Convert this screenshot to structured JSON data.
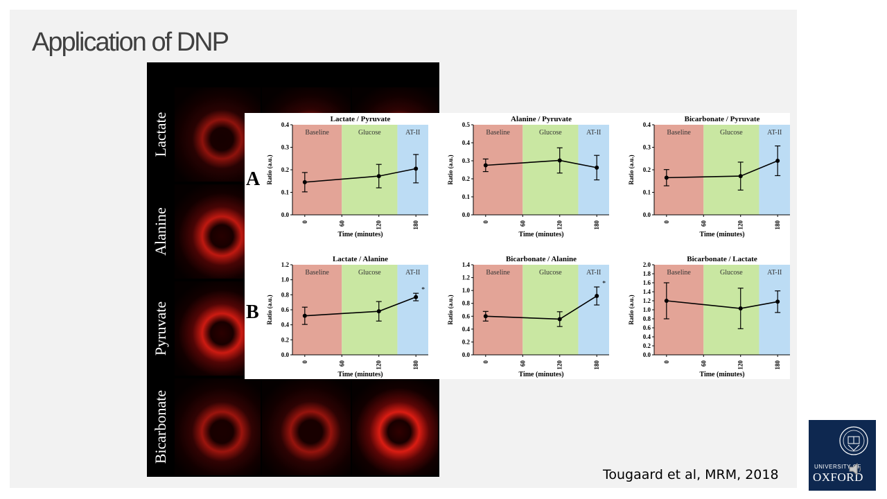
{
  "slide": {
    "title": "Application of DNP",
    "citation": "Tougaard et al, MRM, 2018",
    "logo_text_small": "UNIVERSITY OF",
    "logo_text_large": "OXFORD",
    "logo_icon": "oxford-crest-icon",
    "audio_icon": "speaker-icon"
  },
  "mri_panel": {
    "columns": [
      {
        "label": "Baseline",
        "color": "#f0a090"
      },
      {
        "label": "Glucose",
        "color": "#c8e6a0"
      },
      {
        "label": "AT-II",
        "color": "#bcdcf4"
      }
    ],
    "rows": [
      "Lactate",
      "Alanine",
      "Pyruvate",
      "Bicarbonate"
    ]
  },
  "panel_labels": [
    "A",
    "B"
  ],
  "phase_colors": {
    "Baseline": "#e3a497",
    "Glucose": "#c9e7a2",
    "AT-II": "#bcdcf4"
  },
  "chart_data": [
    {
      "type": "line",
      "title": "Lactate / Pyruvate",
      "xlabel": "Time (minutes)",
      "ylabel": "Ratio (a.u.)",
      "xticks": [
        0,
        60,
        120,
        180
      ],
      "xlim": [
        -20,
        200
      ],
      "ylim": [
        0,
        0.4
      ],
      "yticks": [
        "0.0",
        "0.1",
        "0.2",
        "0.3",
        "0.4"
      ],
      "ytick_values": [
        0,
        0.1,
        0.2,
        0.3,
        0.4
      ],
      "phases": [
        {
          "label": "Baseline",
          "from": -20,
          "to": 60
        },
        {
          "label": "Glucose",
          "from": 60,
          "to": 150
        },
        {
          "label": "AT-II",
          "from": 150,
          "to": 200
        }
      ],
      "x": [
        0,
        120,
        180
      ],
      "y": [
        0.145,
        0.172,
        0.205
      ],
      "err": [
        0.043,
        0.052,
        0.063
      ],
      "annotations": [
        "",
        "",
        ""
      ]
    },
    {
      "type": "line",
      "title": "Alanine / Pyruvate",
      "xlabel": "Time (minutes)",
      "ylabel": "Ratio (a.u.)",
      "xticks": [
        0,
        60,
        120,
        180
      ],
      "xlim": [
        -20,
        200
      ],
      "ylim": [
        0,
        0.5
      ],
      "yticks": [
        "0.0",
        "0.1",
        "0.2",
        "0.3",
        "0.4",
        "0.5"
      ],
      "ytick_values": [
        0,
        0.1,
        0.2,
        0.3,
        0.4,
        0.5
      ],
      "phases": [
        {
          "label": "Baseline",
          "from": -20,
          "to": 60
        },
        {
          "label": "Glucose",
          "from": 60,
          "to": 150
        },
        {
          "label": "AT-II",
          "from": 150,
          "to": 200
        }
      ],
      "x": [
        0,
        120,
        180
      ],
      "y": [
        0.275,
        0.302,
        0.262
      ],
      "err": [
        0.035,
        0.07,
        0.068
      ],
      "annotations": [
        "",
        "",
        ""
      ]
    },
    {
      "type": "line",
      "title": "Bicarbonate / Pyruvate",
      "xlabel": "Time (minutes)",
      "ylabel": "Ratio (a.u.)",
      "xticks": [
        0,
        60,
        120,
        180
      ],
      "xlim": [
        -20,
        200
      ],
      "ylim": [
        0,
        0.4
      ],
      "yticks": [
        "0.0",
        "0.1",
        "0.2",
        "0.3",
        "0.4"
      ],
      "ytick_values": [
        0,
        0.1,
        0.2,
        0.3,
        0.4
      ],
      "phases": [
        {
          "label": "Baseline",
          "from": -20,
          "to": 60
        },
        {
          "label": "Glucose",
          "from": 60,
          "to": 150
        },
        {
          "label": "AT-II",
          "from": 150,
          "to": 200
        }
      ],
      "x": [
        0,
        120,
        180
      ],
      "y": [
        0.165,
        0.172,
        0.24
      ],
      "err": [
        0.036,
        0.062,
        0.066
      ],
      "annotations": [
        "",
        "",
        ""
      ]
    },
    {
      "type": "line",
      "title": "Lactate / Alanine",
      "xlabel": "Time (minutes)",
      "ylabel": "Ratio (a.u.)",
      "xticks": [
        0,
        60,
        120,
        180
      ],
      "xlim": [
        -20,
        200
      ],
      "ylim": [
        0,
        1.2
      ],
      "yticks": [
        "0.0",
        "0.2",
        "0.4",
        "0.6",
        "0.8",
        "1.0",
        "1.2"
      ],
      "ytick_values": [
        0,
        0.2,
        0.4,
        0.6,
        0.8,
        1.0,
        1.2
      ],
      "phases": [
        {
          "label": "Baseline",
          "from": -20,
          "to": 60
        },
        {
          "label": "Glucose",
          "from": 60,
          "to": 150
        },
        {
          "label": "AT-II",
          "from": 150,
          "to": 200
        }
      ],
      "x": [
        0,
        120,
        180
      ],
      "y": [
        0.52,
        0.58,
        0.77
      ],
      "err": [
        0.115,
        0.13,
        0.05
      ],
      "annotations": [
        "",
        "",
        "*"
      ]
    },
    {
      "type": "line",
      "title": "Bicarbonate / Alanine",
      "xlabel": "Time (minutes)",
      "ylabel": "Ratio (a.u.)",
      "xticks": [
        0,
        60,
        120,
        180
      ],
      "xlim": [
        -20,
        200
      ],
      "ylim": [
        0,
        1.4
      ],
      "yticks": [
        "0.0",
        "0.2",
        "0.4",
        "0.6",
        "0.8",
        "1.0",
        "1.2",
        "1.4"
      ],
      "ytick_values": [
        0,
        0.2,
        0.4,
        0.6,
        0.8,
        1.0,
        1.2,
        1.4
      ],
      "phases": [
        {
          "label": "Baseline",
          "from": -20,
          "to": 60
        },
        {
          "label": "Glucose",
          "from": 60,
          "to": 150
        },
        {
          "label": "AT-II",
          "from": 150,
          "to": 200
        }
      ],
      "x": [
        0,
        120,
        180
      ],
      "y": [
        0.6,
        0.555,
        0.915
      ],
      "err": [
        0.075,
        0.115,
        0.14
      ],
      "annotations": [
        "",
        "",
        "*"
      ]
    },
    {
      "type": "line",
      "title": "Bicarbonate / Lactate",
      "xlabel": "Time (minutes)",
      "ylabel": "Ratio (a.u.)",
      "xticks": [
        0,
        60,
        120,
        180
      ],
      "xlim": [
        -20,
        200
      ],
      "ylim": [
        0,
        2.0
      ],
      "yticks": [
        "0.0",
        "0.2",
        "0.4",
        "0.6",
        "0.8",
        "1.0",
        "1.2",
        "1.4",
        "1.6",
        "1.8",
        "2.0"
      ],
      "ytick_values": [
        0,
        0.2,
        0.4,
        0.6,
        0.8,
        1.0,
        1.2,
        1.4,
        1.6,
        1.8,
        2.0
      ],
      "phases": [
        {
          "label": "Baseline",
          "from": -20,
          "to": 60
        },
        {
          "label": "Glucose",
          "from": 60,
          "to": 150
        },
        {
          "label": "AT-II",
          "from": 150,
          "to": 200
        }
      ],
      "x": [
        0,
        120,
        180
      ],
      "y": [
        1.2,
        1.03,
        1.18
      ],
      "err": [
        0.4,
        0.45,
        0.24
      ],
      "annotations": [
        "",
        "",
        ""
      ]
    }
  ]
}
